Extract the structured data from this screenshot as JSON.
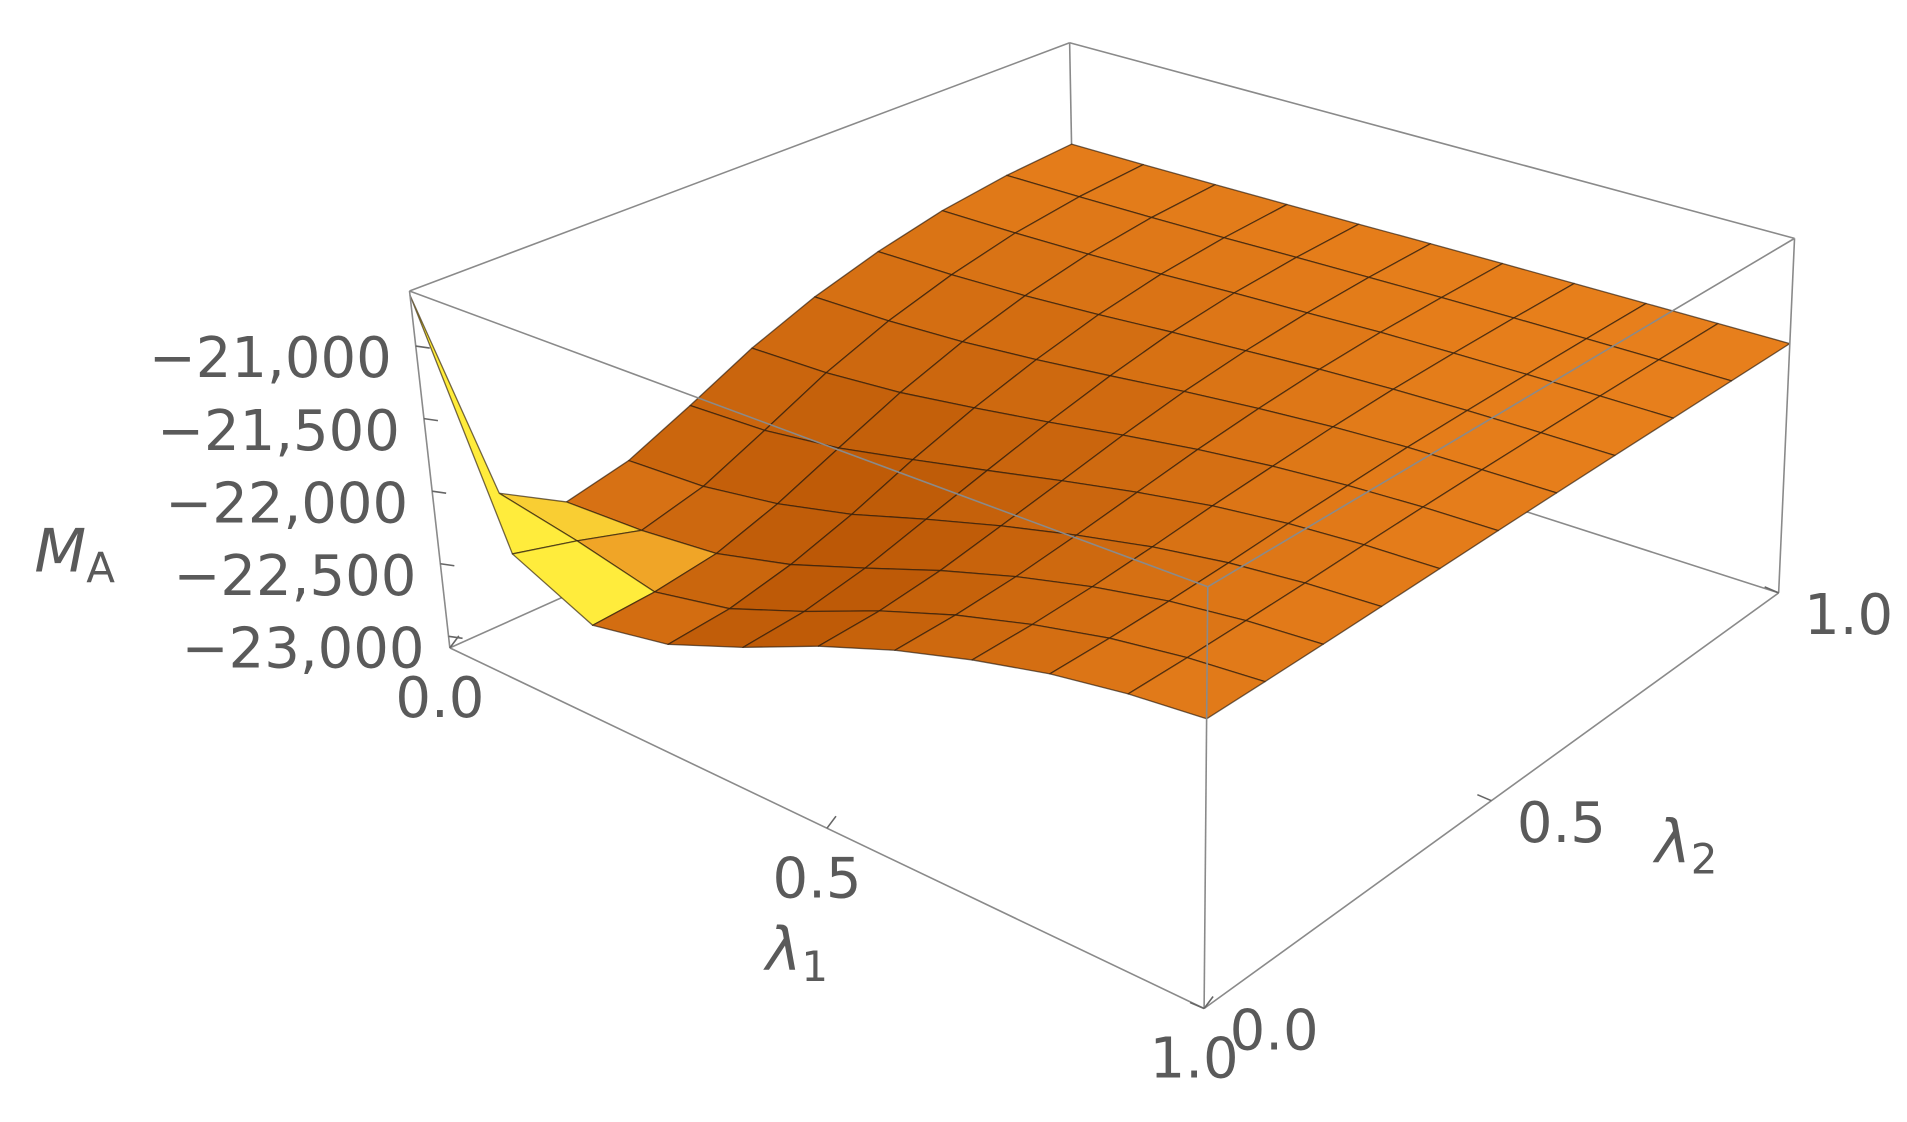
{
  "chart_data": {
    "type": "surface3d",
    "xlabel": [
      "λ",
      "1"
    ],
    "ylabel": [
      "λ",
      "2"
    ],
    "zlabel": [
      "M",
      "A"
    ],
    "x": [
      0,
      0.1,
      0.2,
      0.3,
      0.4,
      0.5,
      0.6,
      0.7,
      0.8,
      0.9,
      1
    ],
    "y": [
      0,
      0.1,
      0.2,
      0.3,
      0.4,
      0.5,
      0.6,
      0.7,
      0.8,
      0.9,
      1
    ],
    "z": [
      [
        -20650,
        -22200,
        -22450,
        -22350,
        -22150,
        -21930,
        -21750,
        -21610,
        -21500,
        -21430,
        -21390
      ],
      [
        -22200,
        -22303,
        -22426,
        -22318,
        -22123,
        -21912,
        -21738,
        -21602,
        -21496,
        -21428,
        -21389
      ],
      [
        -22450,
        -22426,
        -22367,
        -22229,
        -22046,
        -21861,
        -21705,
        -21579,
        -21483,
        -21421,
        -21386
      ],
      [
        -22350,
        -22318,
        -22229,
        -22097,
        -21930,
        -21780,
        -21651,
        -21542,
        -21462,
        -21411,
        -21381
      ],
      [
        -22150,
        -22123,
        -22046,
        -21930,
        -21812,
        -21694,
        -21587,
        -21496,
        -21434,
        -21396,
        -21375
      ],
      [
        -21930,
        -21912,
        -21861,
        -21780,
        -21694,
        -21602,
        -21521,
        -21458,
        -21413,
        -21384,
        -21368
      ],
      [
        -21750,
        -21738,
        -21705,
        -21651,
        -21587,
        -21521,
        -21466,
        -21421,
        -21390,
        -21374,
        -21363
      ],
      [
        -21610,
        -21602,
        -21579,
        -21542,
        -21496,
        -21458,
        -21421,
        -21394,
        -21377,
        -21366,
        -21359
      ],
      [
        -21500,
        -21496,
        -21483,
        -21462,
        -21434,
        -21413,
        -21390,
        -21377,
        -21367,
        -21360,
        -21356
      ],
      [
        -21430,
        -21428,
        -21421,
        -21411,
        -21396,
        -21384,
        -21374,
        -21366,
        -21360,
        -21356,
        -21353
      ],
      [
        -21390,
        -21389,
        -21386,
        -21381,
        -21375,
        -21368,
        -21363,
        -21359,
        -21356,
        -21353,
        -21350
      ]
    ],
    "xlim": [
      0,
      1
    ],
    "ylim": [
      0,
      1
    ],
    "zlim": [
      -23080,
      -20620
    ],
    "xticks": [
      {
        "value": 0,
        "label": "0.0"
      },
      {
        "value": 0.5,
        "label": "0.5"
      },
      {
        "value": 1,
        "label": "1.0"
      }
    ],
    "yticks": [
      {
        "value": 0,
        "label": "0.0"
      },
      {
        "value": 0.5,
        "label": "0.5"
      },
      {
        "value": 1,
        "label": "1.0"
      }
    ],
    "zticks": [
      {
        "value": -23000,
        "label": "−23,000"
      },
      {
        "value": -22500,
        "label": "−22,500"
      },
      {
        "value": -22000,
        "label": "−22,000"
      },
      {
        "value": -21500,
        "label": "−21,500"
      },
      {
        "value": -21000,
        "label": "−21,000"
      }
    ],
    "color": "#e8801c",
    "mesh": true
  }
}
